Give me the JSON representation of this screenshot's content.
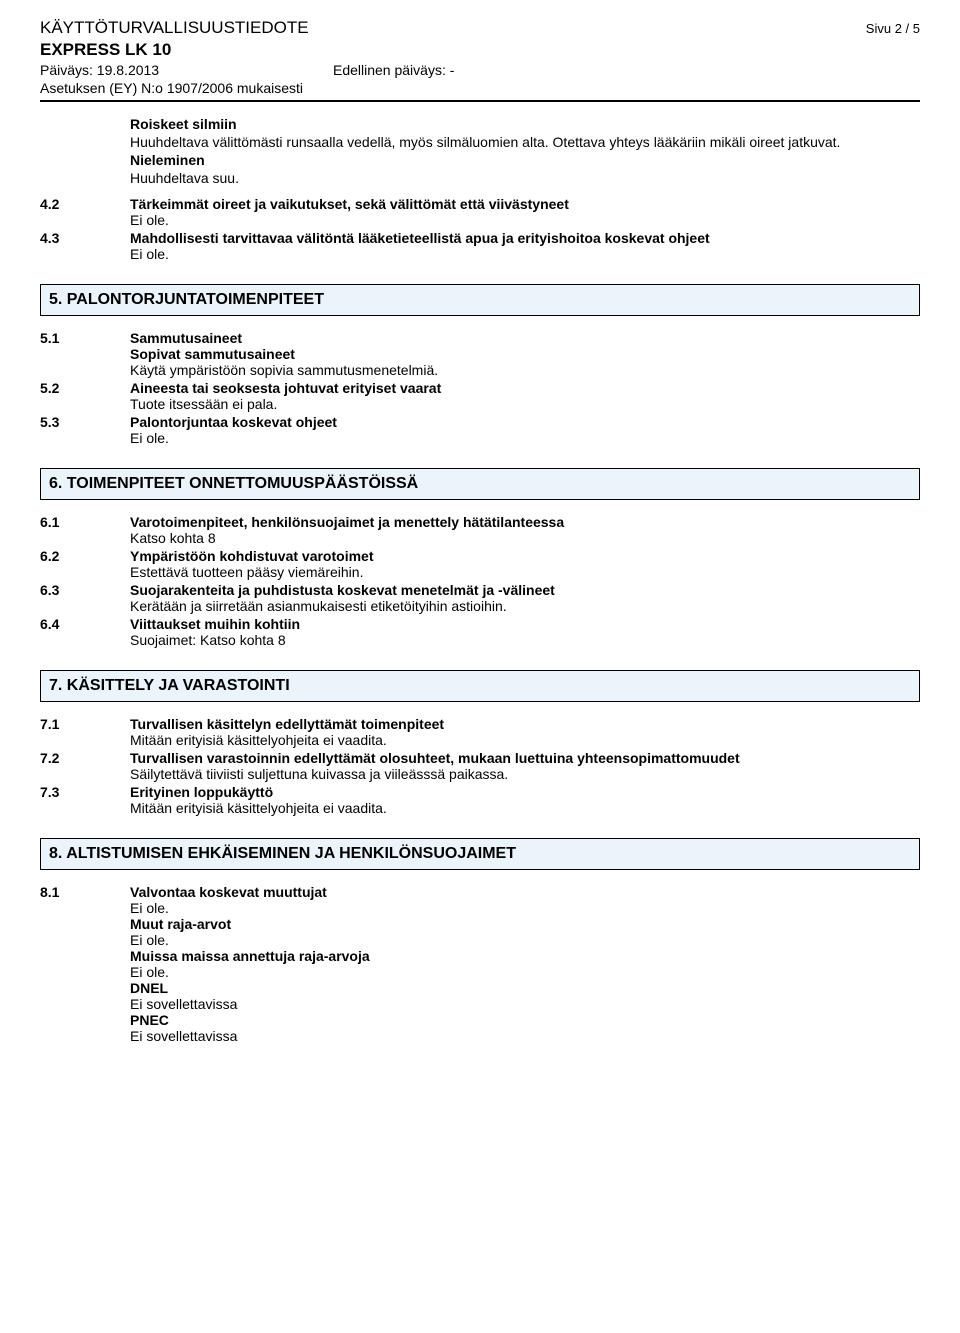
{
  "header": {
    "doc_title": "KÄYTTÖTURVALLISUUSTIEDOTE",
    "page": "Sivu 2 / 5",
    "product": "EXPRESS LK 10",
    "date_label": "Päiväys: 19.8.2013",
    "prev_label": "Edellinen päiväys: -",
    "regulation": "Asetuksen (EY) N:o 1907/2006 mukaisesti"
  },
  "intro": {
    "h1": "Roiskeet silmiin",
    "t1": "Huuhdeltava välittömästi runsaalla vedellä, myös silmäluomien alta. Otettava yhteys lääkäriin mikäli oireet jatkuvat.",
    "h2": "Nieleminen",
    "t2": "Huuhdeltava suu."
  },
  "s4_2": {
    "num": "4.2",
    "h": "Tärkeimmät oireet ja vaikutukset, sekä välittömät että viivästyneet",
    "t": "Ei ole."
  },
  "s4_3": {
    "num": "4.3",
    "h": "Mahdollisesti tarvittavaa välitöntä lääketieteellistä apua ja erityishoitoa koskevat ohjeet",
    "t": "Ei ole."
  },
  "sec5": {
    "title": "5. PALONTORJUNTATOIMENPITEET"
  },
  "s5_1": {
    "num": "5.1",
    "h1": "Sammutusaineet",
    "h2": "Sopivat sammutusaineet",
    "t": "Käytä ympäristöön sopivia sammutusmenetelmiä."
  },
  "s5_2": {
    "num": "5.2",
    "h": "Aineesta tai seoksesta johtuvat erityiset vaarat",
    "t": "Tuote itsessään ei pala."
  },
  "s5_3": {
    "num": "5.3",
    "h": "Palontorjuntaa koskevat ohjeet",
    "t": "Ei ole."
  },
  "sec6": {
    "title": "6. TOIMENPITEET ONNETTOMUUSPÄÄSTÖISSÄ"
  },
  "s6_1": {
    "num": "6.1",
    "h": "Varotoimenpiteet, henkilönsuojaimet ja menettely hätätilanteessa",
    "t": "Katso kohta  8"
  },
  "s6_2": {
    "num": "6.2",
    "h": "Ympäristöön kohdistuvat varotoimet",
    "t": "Estettävä tuotteen pääsy viemäreihin."
  },
  "s6_3": {
    "num": "6.3",
    "h": "Suojarakenteita ja puhdistusta koskevat menetelmät ja -välineet",
    "t": "Kerätään ja siirretään asianmukaisesti etiketöityihin astioihin."
  },
  "s6_4": {
    "num": "6.4",
    "h": "Viittaukset muihin kohtiin",
    "t": "Suojaimet: Katso kohta  8"
  },
  "sec7": {
    "title": "7. KÄSITTELY JA VARASTOINTI"
  },
  "s7_1": {
    "num": "7.1",
    "h": "Turvallisen käsittelyn edellyttämät toimenpiteet",
    "t": "Mitään erityisiä käsittelyohjeita ei vaadita."
  },
  "s7_2": {
    "num": "7.2",
    "h": "Turvallisen varastoinnin edellyttämät olosuhteet, mukaan luettuina yhteensopimattomuudet",
    "t": "Säilytettävä tiiviisti suljettuna kuivassa ja viileässsä paikassa."
  },
  "s7_3": {
    "num": "7.3",
    "h": "Erityinen loppukäyttö",
    "t": "Mitään erityisiä käsittelyohjeita ei vaadita."
  },
  "sec8": {
    "title": "8. ALTISTUMISEN EHKÄISEMINEN JA HENKILÖNSUOJAIMET"
  },
  "s8_1": {
    "num": "8.1",
    "h1": "Valvontaa koskevat muuttujat",
    "t1": "Ei ole.",
    "h2": "Muut raja-arvot",
    "t2": "Ei ole.",
    "h3": "Muissa maissa annettuja raja-arvoja",
    "t3": "Ei ole.",
    "h4": "DNEL",
    "t4": "Ei sovellettavissa",
    "h5": "PNEC",
    "t5": "Ei sovellettavissa"
  },
  "colors": {
    "section_bg": "#ebf3fb",
    "border": "#000000",
    "text": "#000000",
    "page_bg": "#ffffff"
  }
}
